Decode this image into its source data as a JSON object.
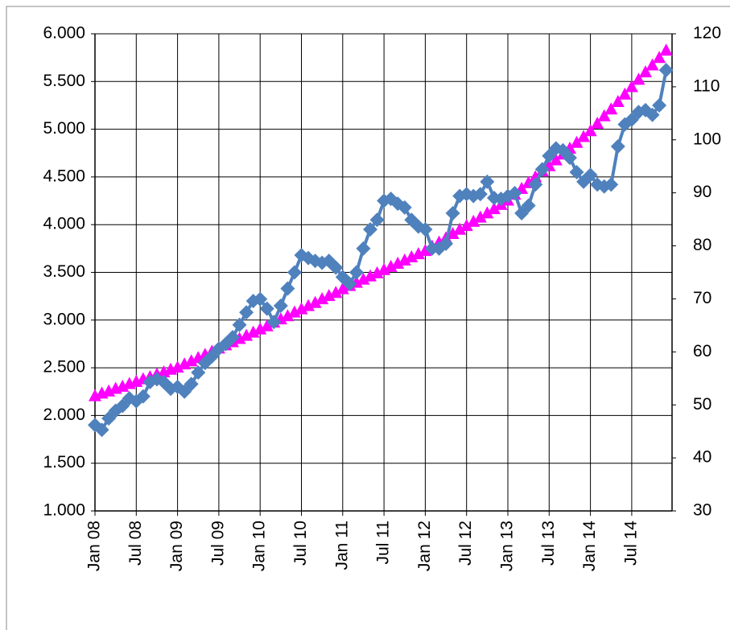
{
  "chart_data": {
    "type": "line",
    "categories": [
      "Jan 08",
      null,
      null,
      null,
      null,
      null,
      "Jul 08",
      null,
      null,
      null,
      null,
      null,
      "Jan 09",
      null,
      null,
      null,
      null,
      null,
      "Jul 09",
      null,
      null,
      null,
      null,
      null,
      "Jan 10",
      null,
      null,
      null,
      null,
      null,
      "Jul 10",
      null,
      null,
      null,
      null,
      null,
      "Jan 11",
      null,
      null,
      null,
      null,
      null,
      "Jul 11",
      null,
      null,
      null,
      null,
      null,
      "Jan 12",
      null,
      null,
      null,
      null,
      null,
      "Jul 12",
      null,
      null,
      null,
      null,
      null,
      "Jan 13",
      null,
      null,
      null,
      null,
      null,
      "Jul 13",
      null,
      null,
      null,
      null,
      null,
      "Jan 14",
      null,
      null,
      null,
      null,
      null,
      "Jul 14",
      null,
      null,
      null,
      null,
      null
    ],
    "series": [
      {
        "color": "#ff00ff",
        "marker": "triangle",
        "axis": "y2",
        "values": [
          51.6,
          52.1,
          52.5,
          53.0,
          53.4,
          53.9,
          54.3,
          54.8,
          55.2,
          55.7,
          56.1,
          56.6,
          57.0,
          57.6,
          58.2,
          58.8,
          59.4,
          60.0,
          60.6,
          61.2,
          61.8,
          62.4,
          63.0,
          63.6,
          64.2,
          64.8,
          65.5,
          66.1,
          66.7,
          67.4,
          68.0,
          68.6,
          69.2,
          69.9,
          70.5,
          71.1,
          71.8,
          72.4,
          73.0,
          73.6,
          74.2,
          74.8,
          75.4,
          76.0,
          76.6,
          77.2,
          77.8,
          78.4,
          79.0,
          79.8,
          80.6,
          81.4,
          82.2,
          83.0,
          83.7,
          84.5,
          85.3,
          86.1,
          86.9,
          87.7,
          88.5,
          89.6,
          90.7,
          91.8,
          92.9,
          94.0,
          95.0,
          96.1,
          97.2,
          98.3,
          99.4,
          100.5,
          101.6,
          103.0,
          104.4,
          105.7,
          107.1,
          108.5,
          109.9,
          111.3,
          112.7,
          114.0,
          115.4,
          116.8
        ]
      },
      {
        "color": "#4f81bd",
        "marker": "diamond",
        "values": [
          1.9,
          1.85,
          1.97,
          2.05,
          2.1,
          2.18,
          2.15,
          2.2,
          2.35,
          2.38,
          2.35,
          2.28,
          2.3,
          2.25,
          2.33,
          2.45,
          2.55,
          2.62,
          2.7,
          2.75,
          2.82,
          2.95,
          3.08,
          3.2,
          3.22,
          3.12,
          2.98,
          3.15,
          3.33,
          3.5,
          3.68,
          3.65,
          3.62,
          3.6,
          3.62,
          3.55,
          3.45,
          3.38,
          3.5,
          3.75,
          3.95,
          4.05,
          4.25,
          4.27,
          4.22,
          4.18,
          4.05,
          3.98,
          3.95,
          3.75,
          3.75,
          3.8,
          4.12,
          4.3,
          4.32,
          4.3,
          4.32,
          4.45,
          4.28,
          4.27,
          4.3,
          4.33,
          4.12,
          4.2,
          4.42,
          4.58,
          4.72,
          4.8,
          4.78,
          4.7,
          4.55,
          4.45,
          4.52,
          4.42,
          4.4,
          4.42,
          4.82,
          5.05,
          5.1,
          5.18,
          5.2,
          5.15,
          5.25,
          5.62
        ]
      }
    ],
    "ylim": [
      1,
      6
    ],
    "yticks": [
      {
        "value": 1,
        "label": "1.000"
      },
      {
        "value": 1.5,
        "label": "1.500"
      },
      {
        "value": 2,
        "label": "2.000"
      },
      {
        "value": 2.5,
        "label": "2.500"
      },
      {
        "value": 3,
        "label": "3.000"
      },
      {
        "value": 3.5,
        "label": "3.500"
      },
      {
        "value": 4,
        "label": "4.000"
      },
      {
        "value": 4.5,
        "label": "4.500"
      },
      {
        "value": 5,
        "label": "5.000"
      },
      {
        "value": 5.5,
        "label": "5.500"
      },
      {
        "value": 6,
        "label": "6.000"
      }
    ],
    "y2lim": [
      30,
      120
    ],
    "y2ticks": [
      30,
      40,
      50,
      60,
      70,
      80,
      90,
      100,
      110,
      120
    ],
    "grid": true
  }
}
